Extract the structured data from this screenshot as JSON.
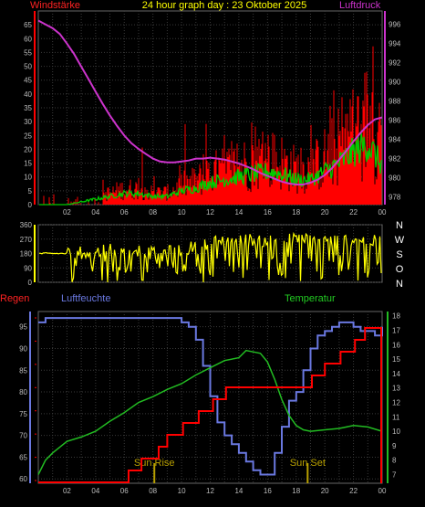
{
  "header": {
    "title": "24 hour graph day : 23 Oktober 2025",
    "left_label": "Windstärke",
    "right_label": "Luftdruck"
  },
  "bottom_header": {
    "rain_label": "Regen",
    "humidity_label": "Luftfeuchte",
    "temp_label": "Temperatur"
  },
  "colors": {
    "background": "#000000",
    "grid": "#3a3a3a",
    "wind": "#ff0000",
    "gust_avg": "#00cc00",
    "pressure": "#cc33cc",
    "calm": "#c8f0c8",
    "direction": "#ffff00",
    "rain": "#ff0000",
    "humidity": "#6a78e0",
    "temperature": "#22bb22",
    "sun_marker": "#b8a000",
    "tick_text": "#bbbbbb",
    "title_text": "#ffff00",
    "left_label_text": "#ff2222",
    "right_label_text": "#cc33cc",
    "axis_bar_left": "#ff0000",
    "axis_bar_right": "#cc33cc"
  },
  "chart_data": [
    {
      "type": "line",
      "name": "wind-pressure",
      "x_ticks": [
        "02",
        "04",
        "06",
        "08",
        "10",
        "12",
        "14",
        "16",
        "18",
        "20",
        "22",
        "00"
      ],
      "y_left_ticks": [
        "0",
        "5",
        "10",
        "15",
        "20",
        "25",
        "30",
        "35",
        "40",
        "45",
        "50",
        "55",
        "60",
        "65"
      ],
      "y_left_range": [
        0,
        70
      ],
      "y_right_ticks": [
        "978",
        "980",
        "982",
        "984",
        "986",
        "988",
        "990",
        "992",
        "994",
        "996"
      ],
      "y_right_range": [
        977.2,
        997.4
      ],
      "x_range": [
        0,
        24
      ],
      "grid": true,
      "series": [
        {
          "name": "Luftdruck",
          "x": [
            0,
            0.5,
            1,
            1.5,
            2,
            2.5,
            3,
            3.5,
            4,
            4.5,
            5,
            5.5,
            6,
            6.5,
            7,
            7.5,
            8,
            8.5,
            9,
            9.5,
            10,
            10.5,
            11,
            11.5,
            12,
            12.5,
            13,
            13.5,
            14,
            14.5,
            15,
            15.5,
            16,
            16.5,
            17,
            17.5,
            18,
            18.5,
            19,
            19.5,
            20,
            20.5,
            21,
            21.5,
            22,
            22.5,
            23,
            23.5,
            24
          ],
          "values": [
            996.4,
            996.0,
            995.6,
            995.0,
            994.0,
            992.9,
            991.6,
            990.3,
            989.0,
            987.7,
            986.5,
            985.4,
            984.4,
            983.6,
            983.0,
            982.5,
            982.0,
            981.7,
            981.6,
            981.6,
            981.7,
            981.8,
            982.0,
            982.0,
            982.1,
            982.0,
            981.9,
            981.7,
            981.5,
            981.2,
            980.9,
            980.5,
            980.2,
            979.9,
            979.6,
            979.4,
            979.3,
            979.3,
            979.5,
            979.8,
            980.3,
            981.0,
            981.9,
            982.8,
            983.8,
            984.7,
            985.5,
            986.1,
            986.3
          ]
        },
        {
          "name": "Wind avg",
          "x": [
            0,
            1,
            2,
            3,
            4,
            5,
            6,
            7,
            8,
            9,
            10,
            11,
            12,
            13,
            14,
            15,
            16,
            17,
            18,
            19,
            20,
            21,
            22,
            23,
            24
          ],
          "values": [
            0,
            0,
            0,
            1,
            2,
            3,
            4,
            4,
            3,
            3,
            5,
            6,
            8,
            9,
            10,
            11,
            12,
            11,
            9,
            9,
            12,
            15,
            19,
            22,
            14
          ]
        }
      ]
    },
    {
      "type": "line",
      "name": "direction",
      "x_ticks": [
        "02",
        "04",
        "06",
        "08",
        "10",
        "12",
        "14",
        "16",
        "18",
        "20",
        "22",
        "00"
      ],
      "y_ticks": [
        "0",
        "90",
        "180",
        "270",
        "360"
      ],
      "y_range": [
        0,
        360
      ],
      "right_labels": [
        "N",
        "W",
        "S",
        "O",
        "N"
      ],
      "grid": true,
      "series": [
        {
          "name": "Windrichtung",
          "x": [
            0,
            2,
            4,
            6,
            8,
            10,
            12,
            14,
            16,
            18,
            20,
            22,
            24
          ],
          "values": [
            180,
            180,
            200,
            220,
            180,
            200,
            250,
            270,
            260,
            270,
            260,
            270,
            250
          ]
        }
      ]
    },
    {
      "type": "line",
      "name": "rain-humidity-temperature",
      "x_ticks": [
        "02",
        "04",
        "06",
        "08",
        "10",
        "12",
        "14",
        "16",
        "18",
        "20",
        "22",
        "00"
      ],
      "y_left_ticks": [
        "60",
        "65",
        "70",
        "75",
        "80",
        "85",
        "90",
        "95"
      ],
      "y_left_range": [
        59,
        98.5
      ],
      "y_right_ticks": [
        "7",
        "8",
        "9",
        "10",
        "11",
        "12",
        "13",
        "14",
        "15",
        "16",
        "17",
        "18"
      ],
      "y_right_range": [
        6.4,
        18.3
      ],
      "annotations": [
        "Sun Rise",
        "Sun Set"
      ],
      "annotation_x": [
        8.1,
        18.8
      ],
      "grid": true,
      "series": [
        {
          "name": "Luftfeuchte",
          "x": [
            0,
            0.5,
            1,
            2,
            3,
            4,
            5,
            6,
            7,
            8,
            9,
            10,
            10.5,
            11,
            11.5,
            12,
            12.5,
            13,
            13.5,
            14,
            14.5,
            15,
            15.5,
            16,
            16.5,
            17,
            17.5,
            18,
            18.5,
            19,
            19.5,
            20,
            20.5,
            21,
            21.5,
            22,
            22.5,
            23,
            23.5,
            24
          ],
          "values": [
            96,
            97,
            97,
            97,
            97,
            97,
            97,
            97,
            97,
            97,
            97,
            96,
            95,
            92,
            86,
            79,
            73,
            70,
            68,
            66,
            64,
            62,
            61,
            61,
            66,
            72,
            78,
            80,
            85,
            90,
            93,
            94,
            95,
            96,
            96,
            95,
            94,
            94,
            93,
            95
          ]
        },
        {
          "name": "Temperatur",
          "x": [
            0,
            0.5,
            1,
            2,
            3,
            4,
            5,
            6,
            7,
            8,
            9,
            10,
            11,
            12,
            13,
            14,
            14.5,
            15,
            15.5,
            16,
            16.5,
            17,
            17.5,
            18,
            18.5,
            19,
            20,
            21,
            22,
            23,
            24
          ],
          "values": [
            7.0,
            8.0,
            8.5,
            9.3,
            9.6,
            10.0,
            10.7,
            11.3,
            12.0,
            12.4,
            12.9,
            13.3,
            13.9,
            14.4,
            14.9,
            15.1,
            15.6,
            15.5,
            15.4,
            14.8,
            13.6,
            12.2,
            11.1,
            10.4,
            10.1,
            10.0,
            10.1,
            10.2,
            10.4,
            10.3,
            10.0
          ]
        },
        {
          "name": "Regen",
          "x": [
            0,
            6.3,
            7.2,
            8.4,
            9.0,
            10.1,
            11.2,
            12.2,
            13.1,
            18.0,
            19.1,
            20.0,
            21.1,
            22.1,
            22.8,
            24
          ],
          "steps": [
            0,
            1,
            2,
            3,
            4,
            5,
            6,
            7,
            8,
            8,
            9,
            10,
            11,
            12,
            13,
            13
          ]
        }
      ]
    }
  ]
}
